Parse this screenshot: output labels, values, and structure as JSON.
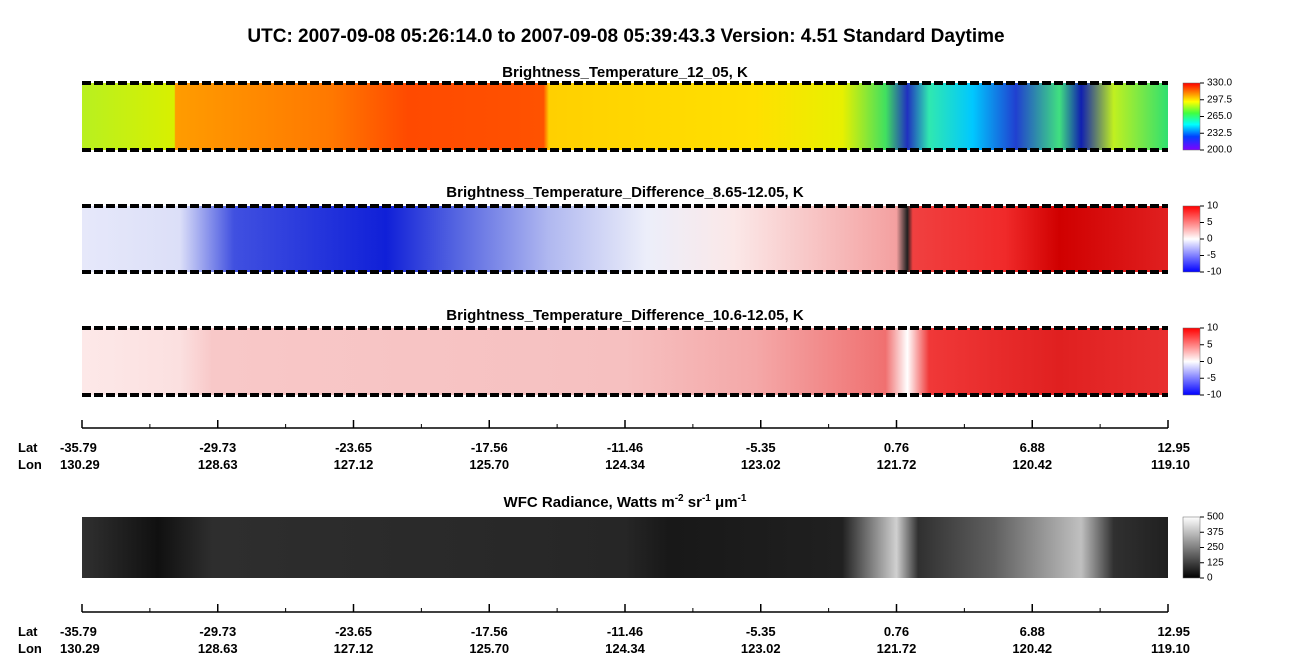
{
  "header": {
    "title": "UTC:  2007-09-08   05:26:14.0  to  2007-09-08   05:39:43.3    Version: 4.51  Standard Daytime"
  },
  "panels": [
    {
      "title": "Brightness_Temperature_12_05, K",
      "colorbar_ticks": [
        "330.0",
        "297.5",
        "265.0",
        "232.5",
        "200.0"
      ]
    },
    {
      "title": "Brightness_Temperature_Difference_8.65-12.05, K",
      "colorbar_ticks": [
        "10",
        "5",
        "0",
        "-5",
        "-10"
      ]
    },
    {
      "title": "Brightness_Temperature_Difference_10.6-12.05, K",
      "colorbar_ticks": [
        "10",
        "5",
        "0",
        "-5",
        "-10"
      ]
    },
    {
      "title_parts": [
        "WFC Radiance, Watts m",
        "-2",
        " sr",
        "-1",
        " μm",
        "-1"
      ],
      "colorbar_ticks": [
        "500",
        "375",
        "250",
        "125",
        "0"
      ]
    }
  ],
  "axes": [
    {
      "lat_label": "Lat",
      "lon_label": "Lon",
      "lat": [
        "-35.79",
        "-29.73",
        "-23.65",
        "-17.56",
        "-11.46",
        "-5.35",
        "0.76",
        "6.88",
        "12.95"
      ],
      "lon": [
        "130.29",
        "128.63",
        "127.12",
        "125.70",
        "124.34",
        "123.02",
        "121.72",
        "120.42",
        "119.10"
      ]
    },
    {
      "lat_label": "Lat",
      "lon_label": "Lon",
      "lat": [
        "-35.79",
        "-29.73",
        "-23.65",
        "-17.56",
        "-11.46",
        "-5.35",
        "0.76",
        "6.88",
        "12.95"
      ],
      "lon": [
        "130.29",
        "128.63",
        "127.12",
        "125.70",
        "124.34",
        "123.02",
        "121.72",
        "120.42",
        "119.10"
      ]
    }
  ]
}
